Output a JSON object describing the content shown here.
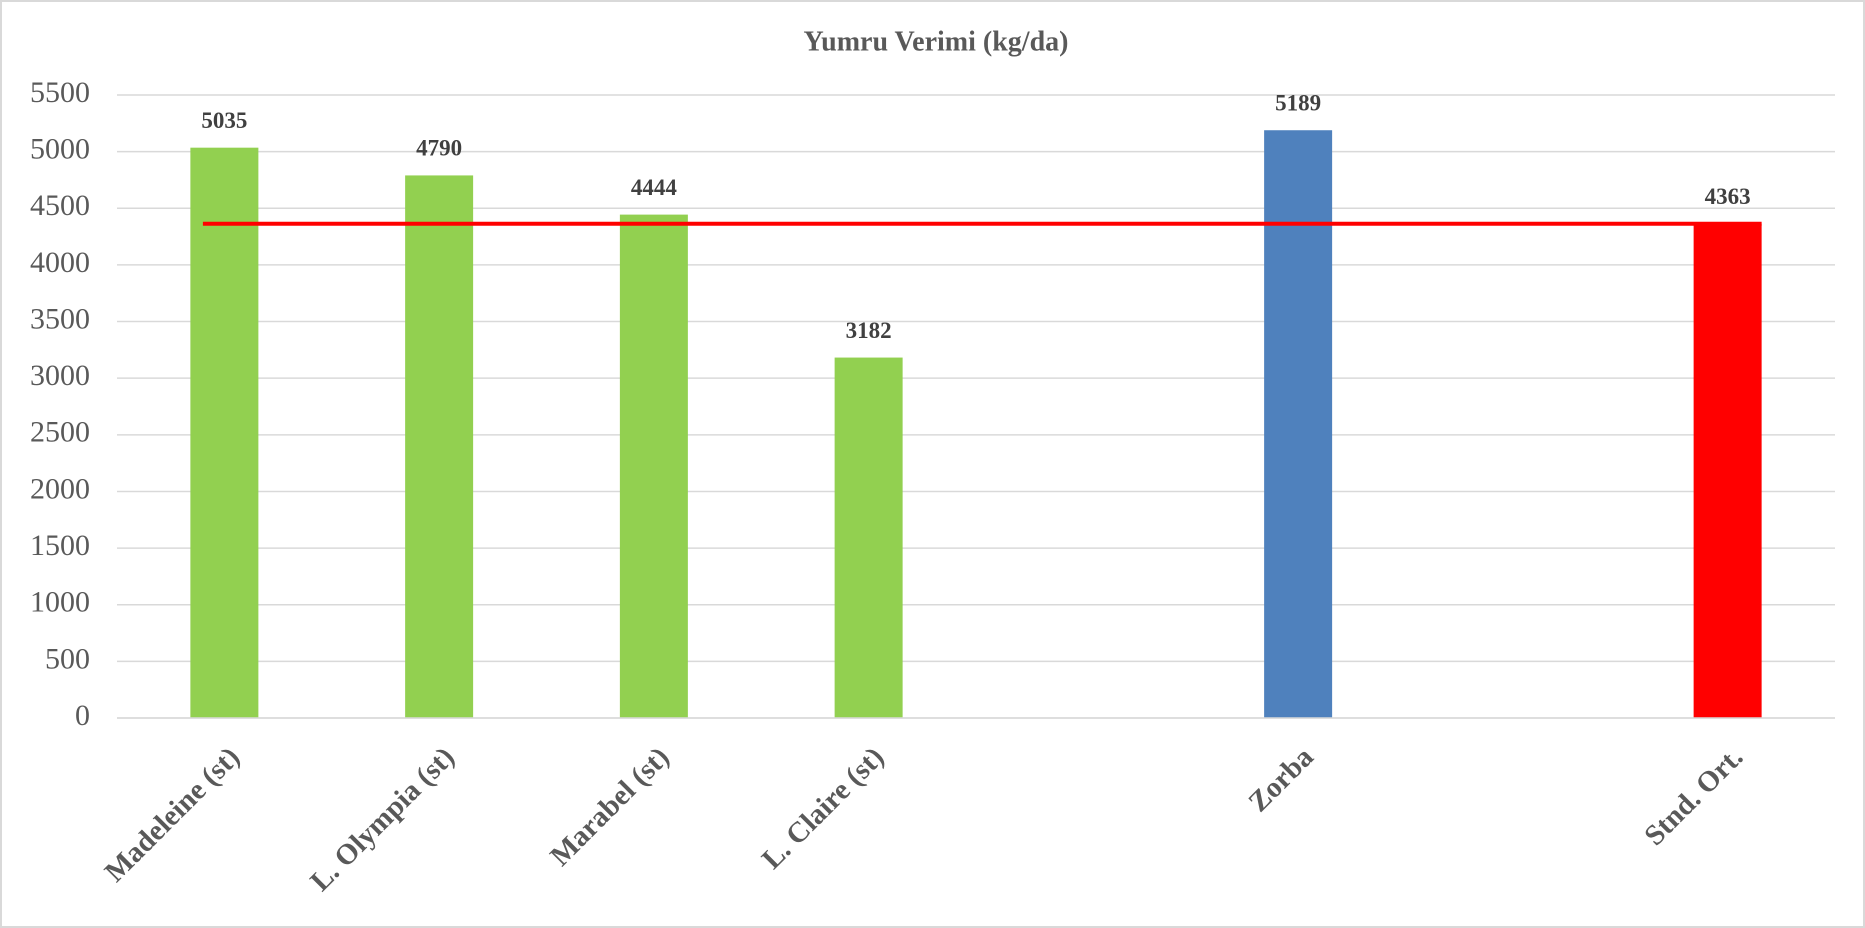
{
  "chart_data": {
    "type": "bar",
    "title": "Yumru Verimi (kg/da)",
    "categories": [
      "Madeleine (st)",
      "L. Olympia (st)",
      "Marabel (st)",
      "L. Claire (st)",
      null,
      "Zorba",
      null,
      "Stnd. Ort."
    ],
    "values": [
      5035,
      4790,
      4444,
      3182,
      null,
      5189,
      null,
      4363
    ],
    "colors": [
      "#92d050",
      "#92d050",
      "#92d050",
      "#92d050",
      null,
      "#4f81bd",
      null,
      "#ff0000"
    ],
    "reference_line_color": "#ff0000",
    "ylim": [
      0,
      5500
    ],
    "yticks": [
      0,
      500,
      1000,
      1500,
      2000,
      2500,
      3000,
      3500,
      4000,
      4500,
      5000,
      5500
    ],
    "grid": true
  }
}
